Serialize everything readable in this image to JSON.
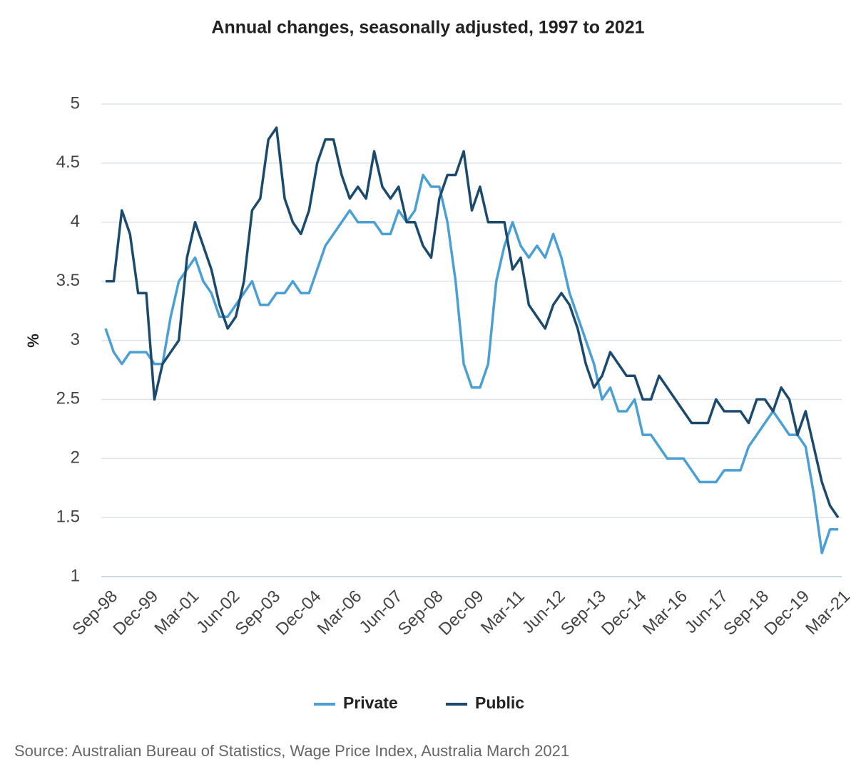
{
  "chart_data": {
    "type": "line",
    "title": "Annual changes, seasonally adjusted, 1997 to 2021",
    "ylabel": "%",
    "source": "Source: Australian Bureau of Statistics, Wage Price Index, Australia March 2021",
    "categories": [
      "Sep-98",
      null,
      null,
      null,
      null,
      "Dec-99",
      null,
      null,
      null,
      null,
      "Mar-01",
      null,
      null,
      null,
      null,
      "Jun-02",
      null,
      null,
      null,
      null,
      "Sep-03",
      null,
      null,
      null,
      null,
      "Dec-04",
      null,
      null,
      null,
      null,
      "Mar-06",
      null,
      null,
      null,
      null,
      "Jun-07",
      null,
      null,
      null,
      null,
      "Sep-08",
      null,
      null,
      null,
      null,
      "Dec-09",
      null,
      null,
      null,
      null,
      "Mar-11",
      null,
      null,
      null,
      null,
      "Jun-12",
      null,
      null,
      null,
      null,
      "Sep-13",
      null,
      null,
      null,
      null,
      "Dec-14",
      null,
      null,
      null,
      null,
      "Mar-16",
      null,
      null,
      null,
      null,
      "Jun-17",
      null,
      null,
      null,
      null,
      "Sep-18",
      null,
      null,
      null,
      null,
      "Dec-19",
      null,
      null,
      null,
      null,
      "Mar-21"
    ],
    "series": [
      {
        "name": "Private",
        "color": "#4a9fd4",
        "values": [
          3.1,
          2.9,
          2.8,
          2.9,
          2.9,
          2.9,
          2.8,
          2.8,
          3.2,
          3.5,
          3.6,
          3.7,
          3.5,
          3.4,
          3.2,
          3.2,
          3.3,
          3.4,
          3.5,
          3.3,
          3.3,
          3.4,
          3.4,
          3.5,
          3.4,
          3.4,
          3.6,
          3.8,
          3.9,
          4.0,
          4.1,
          4.0,
          4.0,
          4.0,
          3.9,
          3.9,
          4.1,
          4.0,
          4.1,
          4.4,
          4.3,
          4.3,
          4.0,
          3.5,
          2.8,
          2.6,
          2.6,
          2.8,
          3.5,
          3.8,
          4.0,
          3.8,
          3.7,
          3.8,
          3.7,
          3.9,
          3.7,
          3.4,
          3.2,
          3.0,
          2.8,
          2.5,
          2.6,
          2.4,
          2.4,
          2.5,
          2.2,
          2.2,
          2.1,
          2.0,
          2.0,
          2.0,
          1.9,
          1.8,
          1.8,
          1.8,
          1.9,
          1.9,
          1.9,
          2.1,
          2.2,
          2.3,
          2.4,
          2.3,
          2.2,
          2.2,
          2.1,
          1.7,
          1.2,
          1.4,
          1.4
        ]
      },
      {
        "name": "Public",
        "color": "#1b4a6d",
        "values": [
          3.5,
          3.5,
          4.1,
          3.9,
          3.4,
          3.4,
          2.5,
          2.8,
          2.9,
          3.0,
          3.7,
          4.0,
          3.8,
          3.6,
          3.3,
          3.1,
          3.2,
          3.5,
          4.1,
          4.2,
          4.7,
          4.8,
          4.2,
          4.0,
          3.9,
          4.1,
          4.5,
          4.7,
          4.7,
          4.4,
          4.2,
          4.3,
          4.2,
          4.6,
          4.3,
          4.2,
          4.3,
          4.0,
          4.0,
          3.8,
          3.7,
          4.2,
          4.4,
          4.4,
          4.6,
          4.1,
          4.3,
          4.0,
          4.0,
          4.0,
          3.6,
          3.7,
          3.3,
          3.2,
          3.1,
          3.3,
          3.4,
          3.3,
          3.1,
          2.8,
          2.6,
          2.7,
          2.9,
          2.8,
          2.7,
          2.7,
          2.5,
          2.5,
          2.7,
          2.6,
          2.5,
          2.4,
          2.3,
          2.3,
          2.3,
          2.5,
          2.4,
          2.4,
          2.4,
          2.3,
          2.5,
          2.5,
          2.4,
          2.6,
          2.5,
          2.2,
          2.4,
          2.1,
          1.8,
          1.6,
          1.5
        ]
      }
    ],
    "ylim": [
      1,
      5
    ],
    "yticks": [
      1,
      1.5,
      2,
      2.5,
      3,
      3.5,
      4,
      4.5,
      5
    ],
    "grid": true
  }
}
